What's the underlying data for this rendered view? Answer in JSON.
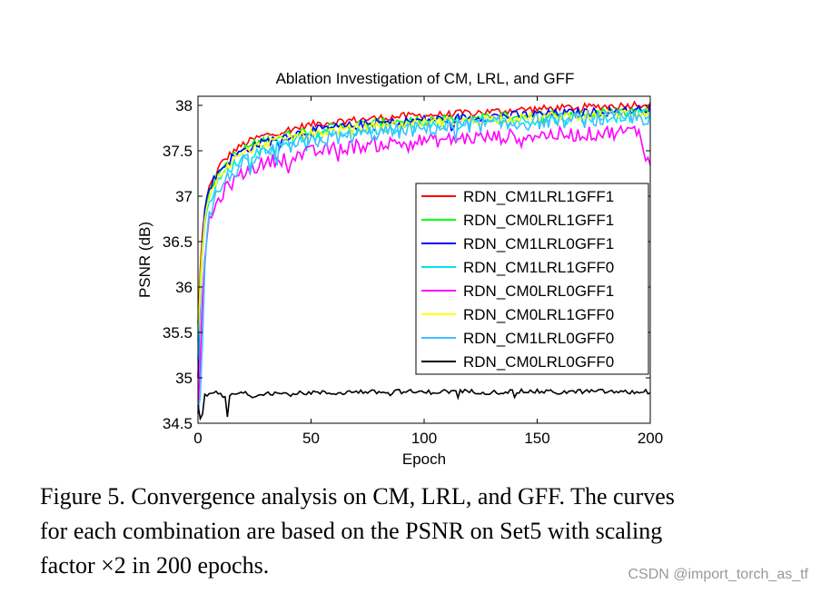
{
  "chart_data": {
    "type": "line",
    "title": "Ablation Investigation of CM, LRL, and GFF",
    "xlabel": "Epoch",
    "ylabel": "PSNR (dB)",
    "xlim": [
      0,
      200
    ],
    "ylim": [
      34.5,
      38.1
    ],
    "xticks": [
      0,
      50,
      100,
      150,
      200
    ],
    "yticks": [
      34.5,
      35,
      35.5,
      36,
      36.5,
      37,
      37.5,
      38
    ],
    "xtick_labels": [
      "0",
      "50",
      "100",
      "150",
      "200"
    ],
    "ytick_labels": [
      "34.5",
      "35",
      "35.5",
      "36",
      "36.5",
      "37",
      "37.5",
      "38"
    ],
    "grid": false,
    "legend_position": "center-right",
    "series": [
      {
        "name": "RDN_CM1LRL1GFF1",
        "color": "#ff0000",
        "x": [
          0,
          1,
          2,
          3,
          4,
          5,
          8,
          10,
          15,
          20,
          25,
          30,
          40,
          50,
          60,
          70,
          80,
          90,
          100,
          110,
          120,
          130,
          140,
          150,
          160,
          170,
          180,
          190,
          195,
          200
        ],
        "y": [
          35.6,
          36.2,
          36.6,
          36.85,
          37.0,
          37.1,
          37.25,
          37.35,
          37.48,
          37.57,
          37.63,
          37.67,
          37.73,
          37.79,
          37.82,
          37.84,
          37.86,
          37.88,
          37.89,
          37.9,
          37.92,
          37.93,
          37.95,
          37.96,
          37.97,
          37.98,
          37.99,
          38.0,
          38.02,
          38.0
        ]
      },
      {
        "name": "RDN_CM0LRL1GFF1",
        "color": "#00ff00",
        "x": [
          0,
          1,
          2,
          3,
          4,
          5,
          8,
          10,
          15,
          20,
          25,
          30,
          40,
          50,
          60,
          70,
          80,
          90,
          100,
          110,
          120,
          130,
          140,
          150,
          160,
          170,
          180,
          190,
          195,
          200
        ],
        "y": [
          35.4,
          36.1,
          36.5,
          36.8,
          36.95,
          37.05,
          37.2,
          37.3,
          37.43,
          37.52,
          37.58,
          37.62,
          37.68,
          37.73,
          37.76,
          37.79,
          37.81,
          37.83,
          37.84,
          37.85,
          37.87,
          37.88,
          37.89,
          37.9,
          37.91,
          37.92,
          37.93,
          37.94,
          37.95,
          37.94
        ]
      },
      {
        "name": "RDN_CM1LRL0GFF1",
        "color": "#0000ff",
        "x": [
          0,
          1,
          2,
          3,
          4,
          5,
          8,
          10,
          15,
          20,
          25,
          30,
          40,
          50,
          60,
          70,
          80,
          90,
          100,
          110,
          120,
          130,
          140,
          150,
          160,
          170,
          180,
          190,
          195,
          200
        ],
        "y": [
          35.0,
          35.9,
          36.5,
          36.85,
          37.0,
          37.1,
          37.22,
          37.3,
          37.42,
          37.5,
          37.56,
          37.6,
          37.67,
          37.72,
          37.75,
          37.78,
          37.8,
          37.82,
          37.84,
          37.85,
          37.87,
          37.88,
          37.89,
          37.9,
          37.91,
          37.92,
          37.93,
          37.94,
          37.95,
          37.96
        ]
      },
      {
        "name": "RDN_CM1LRL1GFF0",
        "color": "#00e5ee",
        "x": [
          0,
          1,
          2,
          3,
          4,
          5,
          8,
          10,
          15,
          20,
          25,
          30,
          40,
          50,
          60,
          70,
          80,
          90,
          100,
          110,
          120,
          130,
          140,
          150,
          160,
          170,
          180,
          190,
          195,
          200
        ],
        "y": [
          35.2,
          35.9,
          36.4,
          36.7,
          36.85,
          36.95,
          37.1,
          37.2,
          37.33,
          37.42,
          37.48,
          37.53,
          37.6,
          37.65,
          37.69,
          37.72,
          37.74,
          37.76,
          37.78,
          37.8,
          37.81,
          37.82,
          37.83,
          37.84,
          37.85,
          37.86,
          37.87,
          37.88,
          37.89,
          37.9
        ]
      },
      {
        "name": "RDN_CM0LRL0GFF1",
        "color": "#ff00ff",
        "x": [
          0,
          1,
          2,
          3,
          4,
          5,
          8,
          10,
          15,
          20,
          25,
          30,
          40,
          50,
          60,
          70,
          80,
          90,
          100,
          110,
          120,
          130,
          140,
          150,
          160,
          170,
          180,
          190,
          195,
          200
        ],
        "y": [
          34.6,
          35.2,
          35.9,
          36.3,
          36.55,
          36.7,
          36.9,
          37.0,
          37.15,
          37.25,
          37.32,
          37.37,
          37.43,
          37.48,
          37.52,
          37.55,
          37.57,
          37.59,
          37.61,
          37.62,
          37.64,
          37.65,
          37.66,
          37.67,
          37.68,
          37.68,
          37.7,
          37.71,
          37.72,
          37.3
        ]
      },
      {
        "name": "RDN_CM0LRL1GFF0",
        "color": "#ffff00",
        "x": [
          0,
          1,
          2,
          3,
          4,
          5,
          8,
          10,
          15,
          20,
          25,
          30,
          40,
          50,
          60,
          70,
          80,
          90,
          100,
          110,
          120,
          130,
          140,
          150,
          160,
          170,
          180,
          190,
          195,
          200
        ],
        "y": [
          35.5,
          36.0,
          36.45,
          36.75,
          36.9,
          37.0,
          37.15,
          37.25,
          37.38,
          37.47,
          37.53,
          37.58,
          37.64,
          37.69,
          37.72,
          37.75,
          37.77,
          37.79,
          37.81,
          37.82,
          37.84,
          37.85,
          37.86,
          37.87,
          37.88,
          37.89,
          37.9,
          37.91,
          37.92,
          37.92
        ]
      },
      {
        "name": "RDN_CM1LRL0GFF0",
        "color": "#3fbfff",
        "x": [
          0,
          1,
          2,
          3,
          4,
          5,
          8,
          10,
          15,
          20,
          25,
          30,
          40,
          50,
          60,
          70,
          80,
          90,
          100,
          110,
          120,
          130,
          140,
          150,
          160,
          170,
          180,
          190,
          195,
          200
        ],
        "y": [
          34.6,
          34.8,
          35.4,
          36.2,
          36.6,
          36.8,
          37.0,
          37.1,
          37.25,
          37.35,
          37.42,
          37.48,
          37.55,
          37.6,
          37.64,
          37.67,
          37.7,
          37.72,
          37.74,
          37.76,
          37.78,
          37.79,
          37.8,
          37.82,
          37.83,
          37.84,
          37.85,
          37.86,
          37.87,
          37.86
        ]
      },
      {
        "name": "RDN_CM0LRL0GFF0",
        "color": "#000000",
        "x": [
          0,
          1,
          2,
          3,
          4,
          5,
          8,
          10,
          12,
          13,
          14,
          15,
          20,
          25,
          30,
          40,
          50,
          60,
          70,
          80,
          90,
          100,
          110,
          120,
          130,
          140,
          150,
          160,
          170,
          180,
          190,
          200
        ],
        "y": [
          34.7,
          34.55,
          34.6,
          34.82,
          34.8,
          34.82,
          34.83,
          34.82,
          34.78,
          34.55,
          34.8,
          34.82,
          34.83,
          34.8,
          34.84,
          34.82,
          34.84,
          34.83,
          34.85,
          34.84,
          34.85,
          34.84,
          34.85,
          34.85,
          34.84,
          34.85,
          34.85,
          34.84,
          34.85,
          34.85,
          34.84,
          34.85
        ]
      }
    ]
  },
  "caption": {
    "line1": "Figure 5. Convergence analysis on CM, LRL, and GFF. The curves",
    "line2": "for each combination are based on the PSNR on Set5 with scaling",
    "line3": "factor ×2 in 200 epochs."
  },
  "watermark": "CSDN @import_torch_as_tf"
}
